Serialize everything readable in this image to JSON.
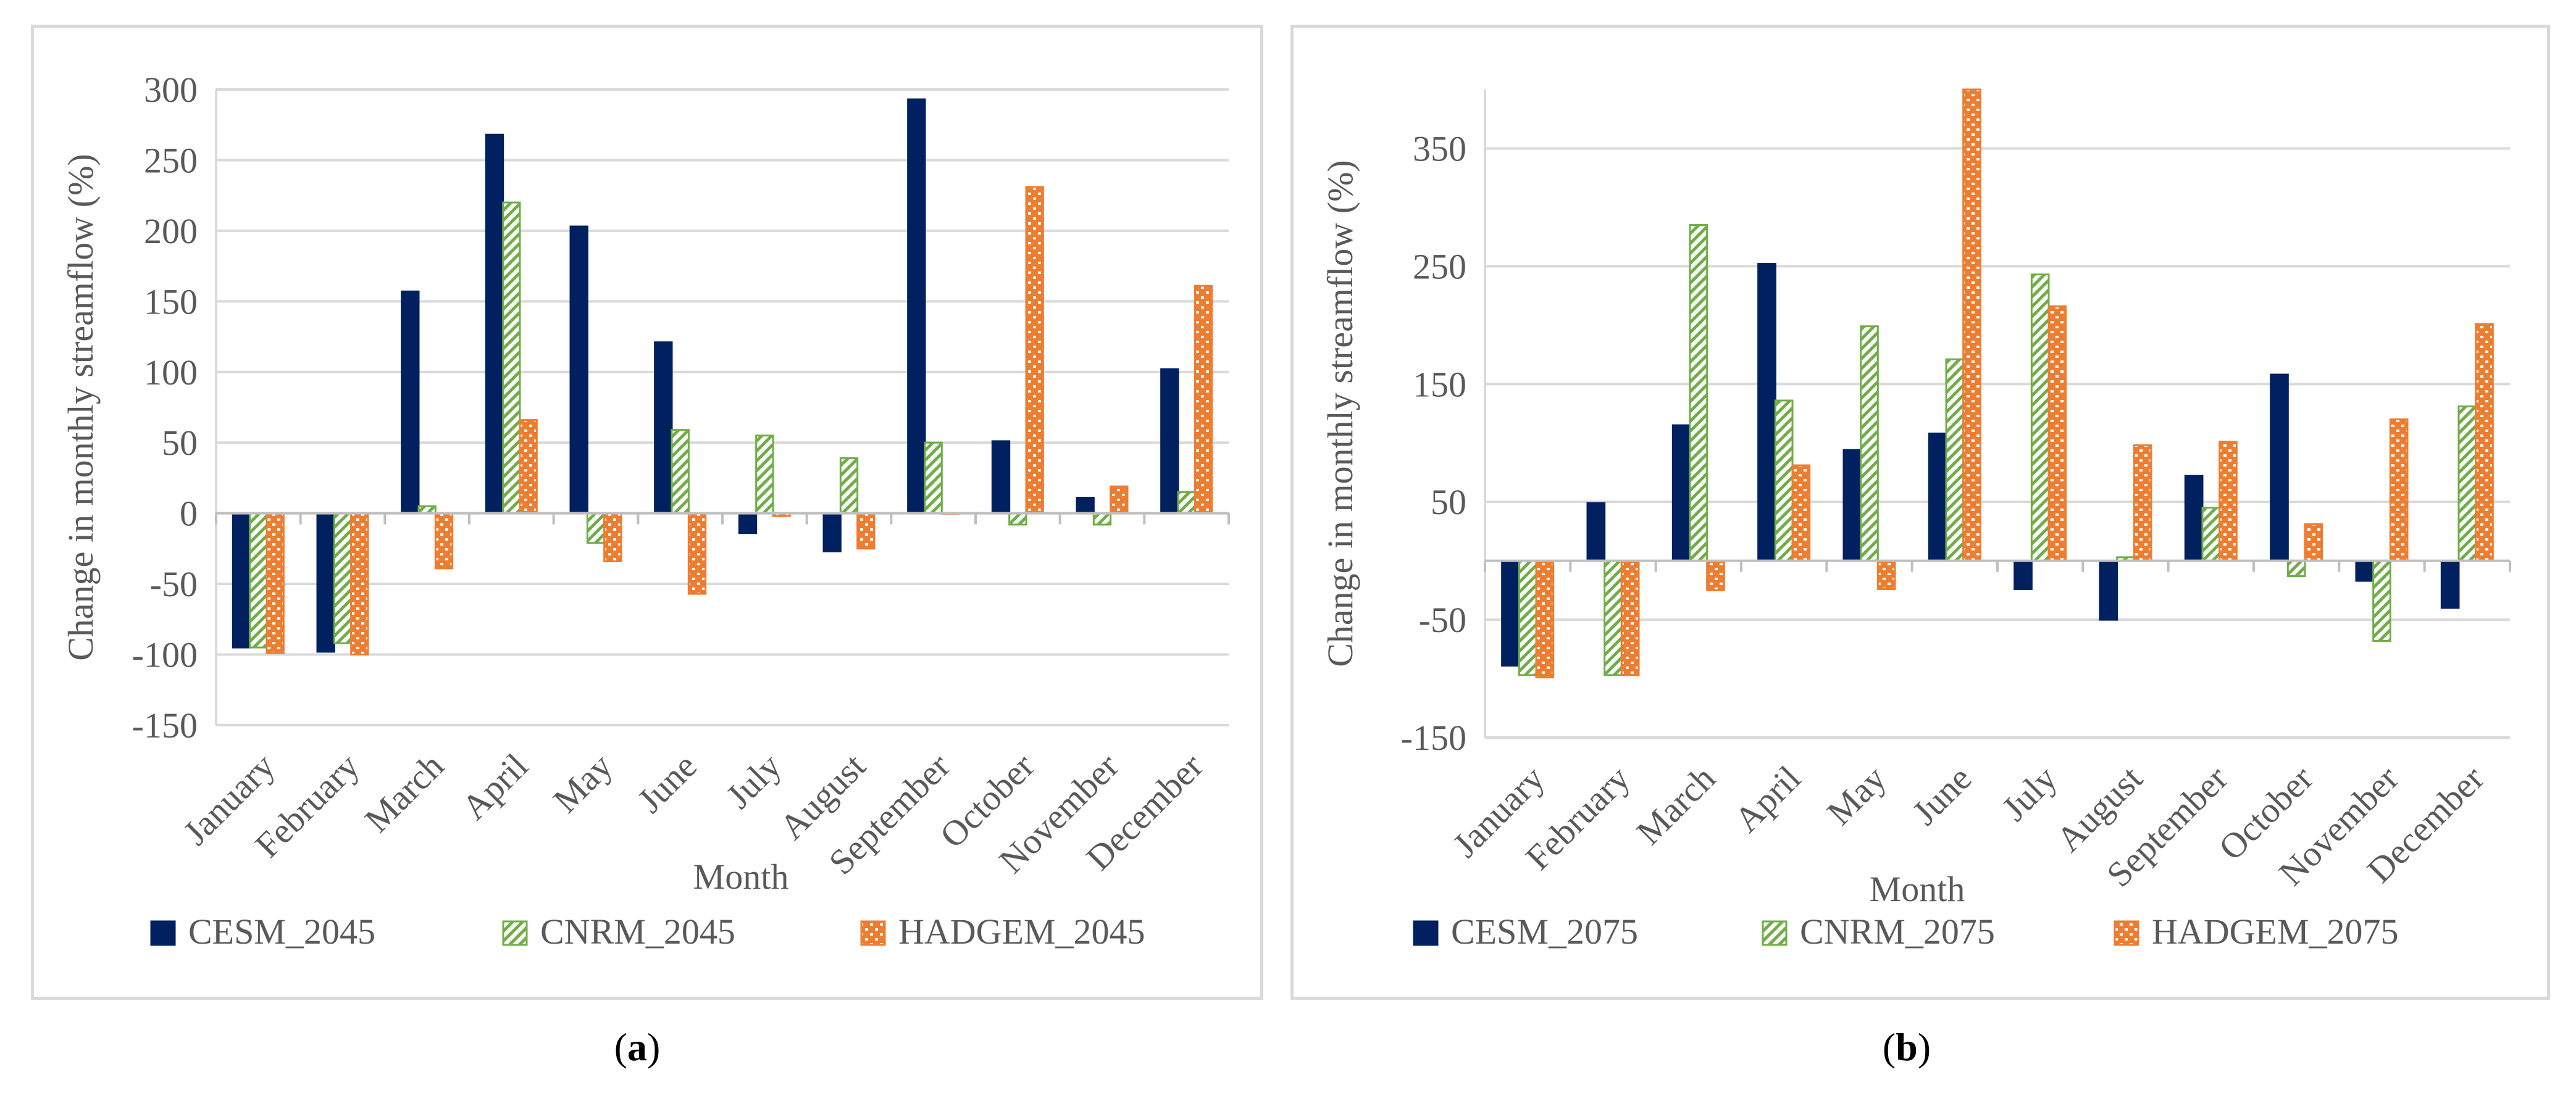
{
  "chart_data": [
    {
      "type": "bar",
      "panel": "a",
      "caption_letter": "a",
      "categories": [
        "January",
        "February",
        "March",
        "April",
        "May",
        "June",
        "July",
        "August",
        "September",
        "October",
        "November",
        "December"
      ],
      "series": [
        {
          "name": "CESM_2045",
          "color": "#002060",
          "pattern": "solid",
          "values": [
            -95,
            -98,
            157,
            268,
            203,
            121,
            -14,
            -27,
            293,
            51,
            11,
            102
          ]
        },
        {
          "name": "CNRM_2045",
          "color": "#70ad47",
          "pattern": "diagonal",
          "values": [
            -95,
            -92,
            5,
            220,
            -21,
            59,
            55,
            39,
            50,
            -8,
            -8,
            15
          ]
        },
        {
          "name": "HADGEM_2045",
          "color": "#ed7d31",
          "pattern": "dots",
          "values": [
            -99,
            -100,
            -39,
            66,
            -34,
            -57,
            -2,
            -25,
            0,
            231,
            19,
            161
          ]
        }
      ],
      "title": "",
      "xlabel": "Month",
      "ylabel": "Change in monthly streamflow (%)",
      "ylim": [
        -150,
        300
      ],
      "yticks": [
        -150,
        -100,
        -50,
        0,
        50,
        100,
        150,
        200,
        250,
        300
      ],
      "ytick_labels": [
        "-150",
        "-100",
        "-50",
        "0",
        "50",
        "100",
        "150",
        "200",
        "250",
        "300"
      ],
      "grid": true,
      "legend_position": "bottom"
    },
    {
      "type": "bar",
      "panel": "b",
      "caption_letter": "b",
      "categories": [
        "January",
        "February",
        "March",
        "April",
        "May",
        "June",
        "July",
        "August",
        "September",
        "October",
        "November",
        "December"
      ],
      "series": [
        {
          "name": "CESM_2075",
          "color": "#002060",
          "pattern": "solid",
          "values": [
            -89,
            49,
            115,
            252,
            94,
            108,
            -24,
            -50,
            72,
            158,
            -17,
            -40
          ]
        },
        {
          "name": "CNRM_2075",
          "color": "#70ad47",
          "pattern": "diagonal",
          "values": [
            -97,
            -97,
            285,
            136,
            199,
            171,
            243,
            3,
            45,
            -13,
            -68,
            131
          ]
        },
        {
          "name": "HADGEM_2075",
          "color": "#ed7d31",
          "pattern": "dots",
          "values": [
            -99,
            -97,
            -25,
            81,
            -24,
            400,
            216,
            98,
            101,
            31,
            120,
            201
          ]
        }
      ],
      "title": "",
      "xlabel": "Month",
      "ylabel": "Change in monthly streamflow (%)",
      "ylim": [
        -150,
        400
      ],
      "yticks": [
        -150,
        -50,
        50,
        150,
        250,
        350
      ],
      "ytick_labels": [
        "-150",
        "-50",
        "50",
        "150",
        "250",
        "350"
      ],
      "grid": true,
      "legend_position": "bottom"
    }
  ]
}
